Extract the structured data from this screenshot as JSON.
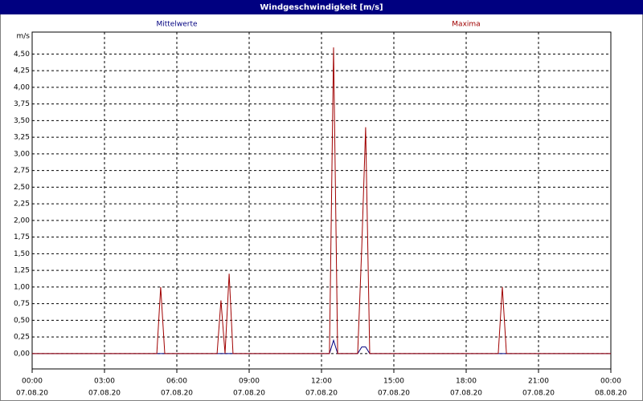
{
  "chart_data": {
    "type": "line",
    "title": "Windgeschwindigkeit [m/s]",
    "y_label": "m/s",
    "series": [
      {
        "name": "Mittelwerte",
        "color": "#000080",
        "x": [
          0,
          12.33,
          12.5,
          12.67,
          13.5,
          13.67,
          13.83,
          14.0,
          24
        ],
        "values": [
          0,
          0,
          0.2,
          0,
          0,
          0.1,
          0.1,
          0,
          0
        ]
      },
      {
        "name": "Maxima",
        "color": "#a00000",
        "x": [
          0,
          5.17,
          5.33,
          5.5,
          7.67,
          7.83,
          8.0,
          8.17,
          8.33,
          12.33,
          12.5,
          12.67,
          13.5,
          13.67,
          13.83,
          14.0,
          19.33,
          19.5,
          19.67,
          24
        ],
        "values": [
          0,
          0,
          1.0,
          0,
          0,
          0.8,
          0,
          1.2,
          0,
          0,
          4.6,
          0,
          0,
          1.6,
          3.4,
          0,
          0,
          1.0,
          0,
          0
        ]
      }
    ],
    "xlim": [
      0,
      24
    ],
    "xticks": [
      {
        "value": 0,
        "label": "00:00"
      },
      {
        "value": 3,
        "label": "03:00"
      },
      {
        "value": 6,
        "label": "06:00"
      },
      {
        "value": 9,
        "label": "09:00"
      },
      {
        "value": 12,
        "label": "12:00"
      },
      {
        "value": 15,
        "label": "15:00"
      },
      {
        "value": 18,
        "label": "18:00"
      },
      {
        "value": 21,
        "label": "21:00"
      },
      {
        "value": 24,
        "label": "00:00"
      }
    ],
    "xtick_dates": [
      "07.08.20",
      "07.08.20",
      "07.08.20",
      "07.08.20",
      "07.08.20",
      "07.08.20",
      "07.08.20",
      "07.08.20",
      "08.08.20"
    ],
    "ylim": [
      -0.23,
      4.83
    ],
    "yticks": [
      {
        "value": 0,
        "label": "0,00"
      },
      {
        "value": 0.25,
        "label": "0,25"
      },
      {
        "value": 0.5,
        "label": "0,50"
      },
      {
        "value": 0.75,
        "label": "0,75"
      },
      {
        "value": 1,
        "label": "1,00"
      },
      {
        "value": 1.25,
        "label": "1,25"
      },
      {
        "value": 1.5,
        "label": "1,50"
      },
      {
        "value": 1.75,
        "label": "1,75"
      },
      {
        "value": 2,
        "label": "2,00"
      },
      {
        "value": 2.25,
        "label": "2,25"
      },
      {
        "value": 2.5,
        "label": "2,50"
      },
      {
        "value": 2.75,
        "label": "2,75"
      },
      {
        "value": 3,
        "label": "3,00"
      },
      {
        "value": 3.25,
        "label": "3,25"
      },
      {
        "value": 3.5,
        "label": "3,50"
      },
      {
        "value": 3.75,
        "label": "3,75"
      },
      {
        "value": 4,
        "label": "4,00"
      },
      {
        "value": 4.25,
        "label": "4,25"
      },
      {
        "value": 4.5,
        "label": "4,50"
      }
    ],
    "grid": true
  }
}
